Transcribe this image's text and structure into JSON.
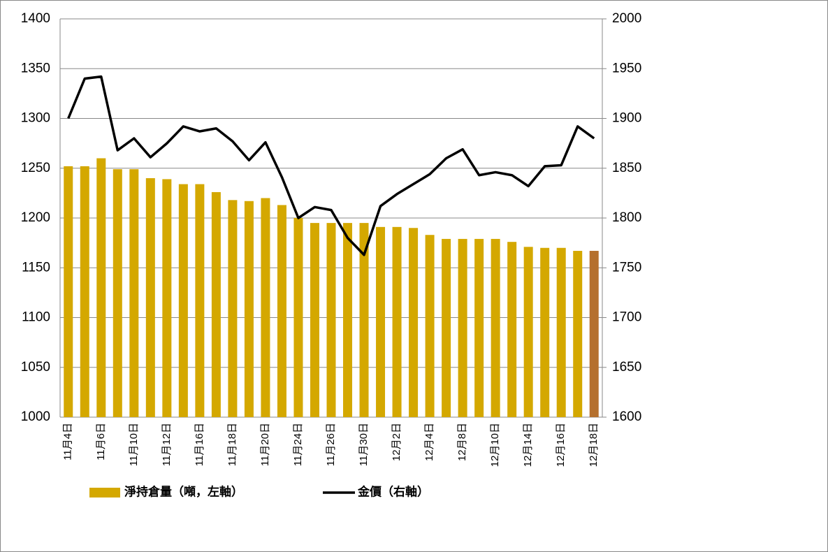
{
  "chart_data": {
    "type": "bar_line",
    "categories": [
      "11月4日",
      null,
      "11月6日",
      null,
      "11月10日",
      null,
      "11月12日",
      null,
      "11月16日",
      null,
      "11月18日",
      null,
      "11月20日",
      null,
      "11月24日",
      null,
      "11月26日",
      null,
      "11月30日",
      null,
      "12月2日",
      null,
      "12月4日",
      null,
      "12月8日",
      null,
      "12月10日",
      null,
      "12月14日",
      null,
      "12月16日",
      null,
      "12月18日"
    ],
    "series": [
      {
        "name": "淨持倉量（噸，左軸）",
        "type": "bar",
        "color": "#d4a800",
        "last_color": "#b5702e",
        "values": [
          1252,
          1252,
          1260,
          1249,
          1249,
          1240,
          1239,
          1234,
          1234,
          1226,
          1218,
          1217,
          1220,
          1213,
          1200,
          1195,
          1195,
          1195,
          1195,
          1191,
          1191,
          1190,
          1183,
          1179,
          1179,
          1179,
          1179,
          1176,
          1171,
          1170,
          1170,
          1167,
          1167
        ]
      },
      {
        "name": "金價（右軸）",
        "type": "line",
        "axis": "y2",
        "color": "#000000",
        "values": [
          1900,
          1940,
          1942,
          1868,
          1880,
          1861,
          1875,
          1892,
          1887,
          1890,
          1877,
          1858,
          1876,
          1841,
          1800,
          1811,
          1808,
          1780,
          1763,
          1812,
          1824,
          1834,
          1844,
          1860,
          1869,
          1843,
          1846,
          1843,
          1832,
          1852,
          1853,
          1892,
          1880
        ]
      }
    ],
    "ylim": [
      1000,
      1400
    ],
    "yticks": [
      1000,
      1050,
      1100,
      1150,
      1200,
      1250,
      1300,
      1350,
      1400
    ],
    "y2lim": [
      1600,
      2000
    ],
    "y2ticks": [
      1600,
      1650,
      1700,
      1750,
      1800,
      1850,
      1900,
      1950,
      2000
    ],
    "grid": true
  }
}
